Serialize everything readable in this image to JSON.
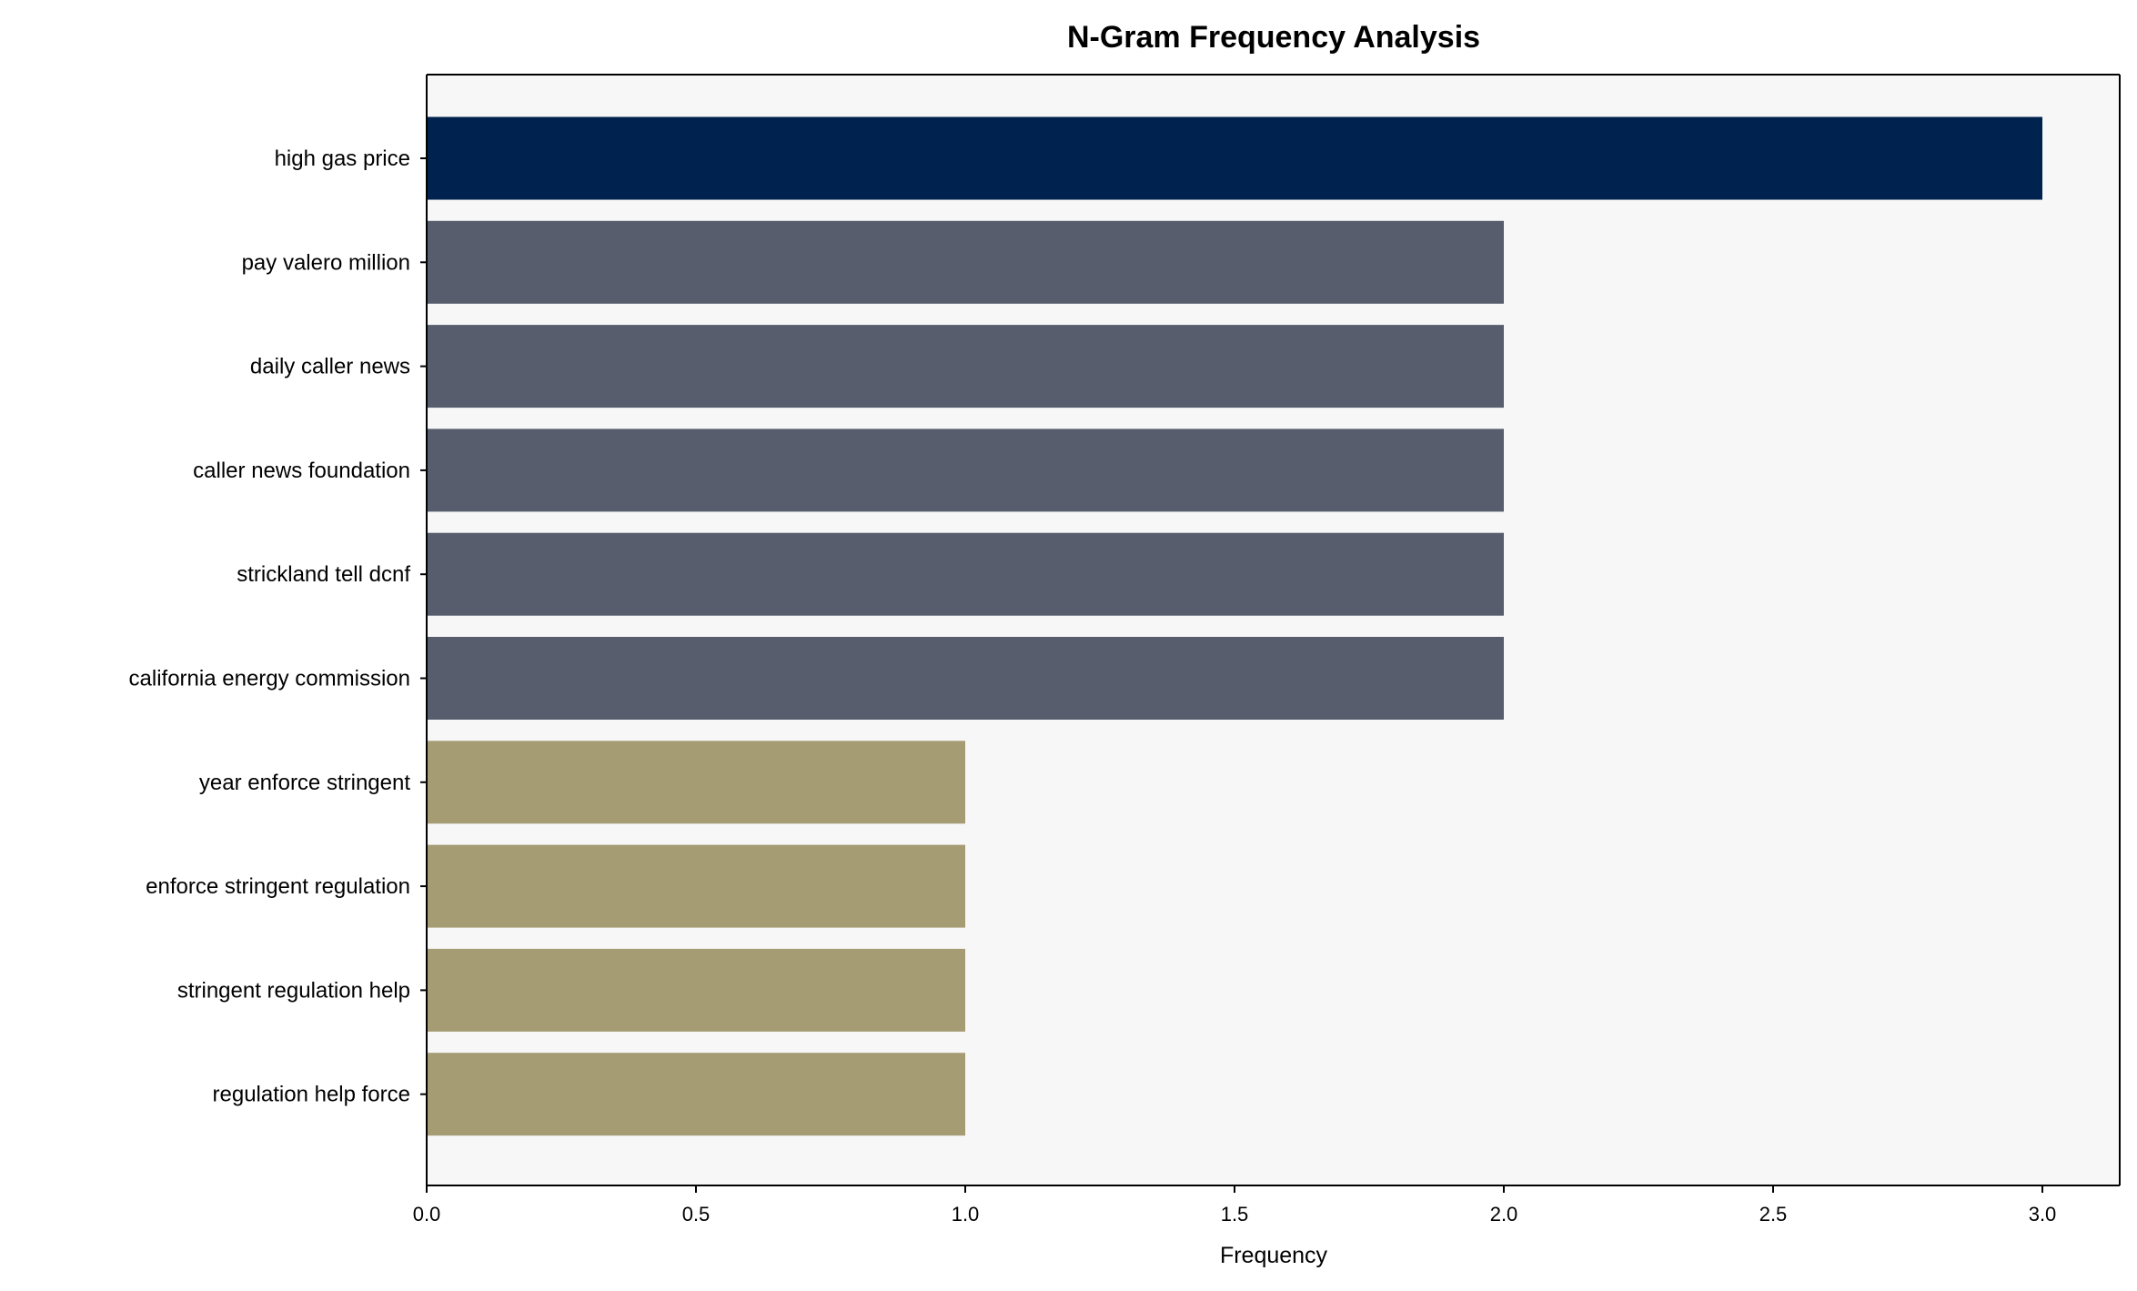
{
  "chart_data": {
    "type": "bar",
    "orientation": "horizontal",
    "title": "N-Gram Frequency Analysis",
    "xlabel": "Frequency",
    "ylabel": "",
    "xlim": [
      0,
      3.15
    ],
    "xticks": [
      "0.0",
      "0.5",
      "1.0",
      "1.5",
      "2.0",
      "2.5",
      "3.0"
    ],
    "grid": false,
    "background": "#f7f7f7",
    "categories": [
      "high gas price",
      "pay valero million",
      "daily caller news",
      "caller news foundation",
      "strickland tell dcnf",
      "california energy commission",
      "year enforce stringent",
      "enforce stringent regulation",
      "stringent regulation help",
      "regulation help force"
    ],
    "values": [
      3,
      2,
      2,
      2,
      2,
      2,
      1,
      1,
      1,
      1
    ],
    "colors": [
      "#00224e",
      "#575d6d",
      "#575d6d",
      "#575d6d",
      "#575d6d",
      "#575d6d",
      "#a59c74",
      "#a59c74",
      "#a59c74",
      "#a59c74"
    ]
  }
}
